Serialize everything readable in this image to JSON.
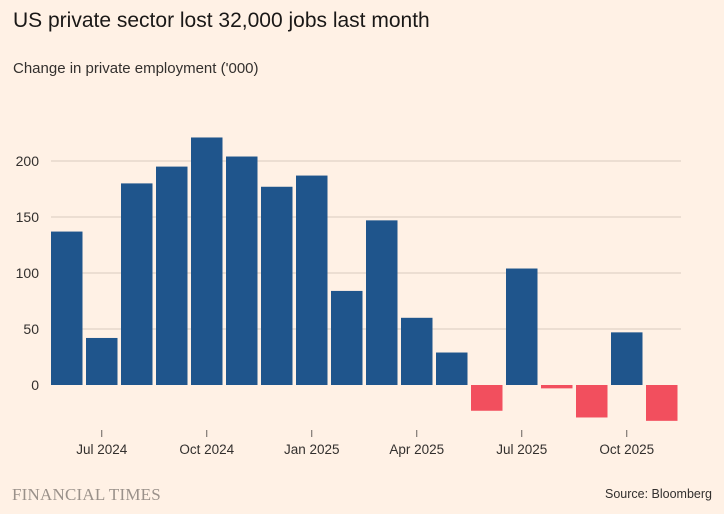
{
  "title": "US private sector lost 32,000 jobs last month",
  "subtitle": "Change in private employment ('000)",
  "source": "Source: Bloomberg",
  "logo": "FINANCIAL TIMES",
  "colors": {
    "positive": "#1f558c",
    "negative": "#f24f5e",
    "grid": "#d9cbc0",
    "background": "#fff1e5"
  },
  "chart_data": {
    "type": "bar",
    "categories": [
      "Jun 2024",
      "Jul 2024",
      "Aug 2024",
      "Sep 2024",
      "Oct 2024",
      "Nov 2024",
      "Dec 2024",
      "Jan 2025",
      "Feb 2025",
      "Mar 2025",
      "Apr 2025",
      "May 2025",
      "Jun 2025",
      "Jul 2025",
      "Aug 2025",
      "Sep 2025",
      "Oct 2025",
      "Nov 2025"
    ],
    "values": [
      137,
      42,
      180,
      195,
      221,
      204,
      177,
      187,
      84,
      147,
      60,
      29,
      -23,
      104,
      -3,
      -29,
      47,
      -32
    ],
    "ylim": [
      -40,
      240
    ],
    "yticks": [
      0,
      50,
      100,
      150,
      200
    ],
    "xticks": [
      {
        "label": "Jul 2024",
        "category": "Jul 2024"
      },
      {
        "label": "Oct 2024",
        "category": "Oct 2024"
      },
      {
        "label": "Jan 2025",
        "category": "Jan 2025"
      },
      {
        "label": "Apr 2025",
        "category": "Apr 2025"
      },
      {
        "label": "Jul 2025",
        "category": "Jul 2025"
      },
      {
        "label": "Oct 2025",
        "category": "Oct 2025"
      }
    ],
    "grid": true,
    "xlabel": "",
    "ylabel": ""
  }
}
